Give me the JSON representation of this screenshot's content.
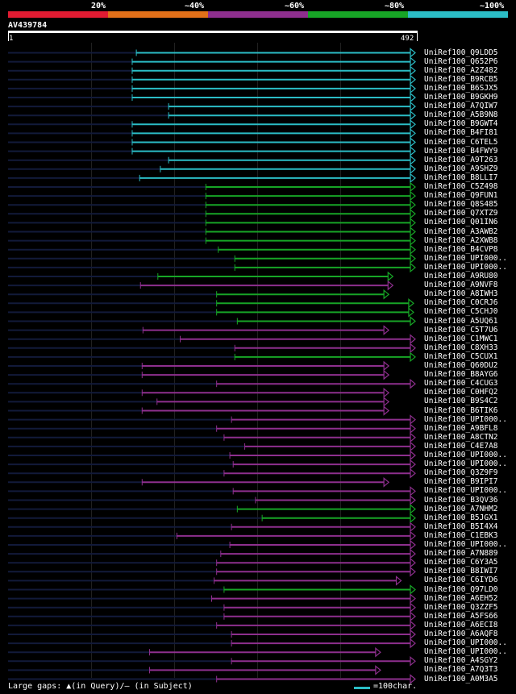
{
  "legend": {
    "labels": [
      "20%",
      "~40%",
      "~60%",
      "~80%",
      "~100%"
    ],
    "colors": [
      "#e01b32",
      "#e27019",
      "#8e2f8e",
      "#17a526",
      "#2bbdc6"
    ]
  },
  "query": {
    "name": "AV439784",
    "start": "1",
    "end": "492"
  },
  "footer": {
    "gaps_text": "Large gaps: ▲(in Query)/– (in Subject)",
    "scale_text": "=100char."
  },
  "chart_data": {
    "type": "alignment-overview",
    "query_length": 492,
    "hits": [
      {
        "name": "UniRef100_Q9LDD5",
        "start": 156,
        "end": 492,
        "identity_color": "#2bbdc6"
      },
      {
        "name": "UniRef100_Q652P6",
        "start": 151,
        "end": 492,
        "identity_color": "#2bbdc6"
      },
      {
        "name": "UniRef100_A2Z482",
        "start": 151,
        "end": 492,
        "identity_color": "#2bbdc6"
      },
      {
        "name": "UniRef100_B9RCB5",
        "start": 151,
        "end": 492,
        "identity_color": "#2bbdc6"
      },
      {
        "name": "UniRef100_B6SJX5",
        "start": 151,
        "end": 492,
        "identity_color": "#2bbdc6"
      },
      {
        "name": "UniRef100_B9GKH9",
        "start": 151,
        "end": 492,
        "identity_color": "#2bbdc6"
      },
      {
        "name": "UniRef100_A7QIW7",
        "start": 195,
        "end": 492,
        "identity_color": "#2bbdc6"
      },
      {
        "name": "UniRef100_A5B9N8",
        "start": 195,
        "end": 492,
        "identity_color": "#2bbdc6"
      },
      {
        "name": "UniRef100_B9GWT4",
        "start": 151,
        "end": 492,
        "identity_color": "#2bbdc6"
      },
      {
        "name": "UniRef100_B4FI81",
        "start": 151,
        "end": 492,
        "identity_color": "#2bbdc6"
      },
      {
        "name": "UniRef100_C6TEL5",
        "start": 151,
        "end": 492,
        "identity_color": "#2bbdc6"
      },
      {
        "name": "UniRef100_B4FWY9",
        "start": 151,
        "end": 492,
        "identity_color": "#2bbdc6"
      },
      {
        "name": "UniRef100_A9T263",
        "start": 195,
        "end": 492,
        "identity_color": "#2bbdc6"
      },
      {
        "name": "UniRef100_A9SHZ9",
        "start": 185,
        "end": 492,
        "identity_color": "#2bbdc6"
      },
      {
        "name": "UniRef100_B8LLI7",
        "start": 160,
        "end": 492,
        "identity_color": "#2bbdc6"
      },
      {
        "name": "UniRef100_C5Z498",
        "start": 240,
        "end": 492,
        "identity_color": "#17a526"
      },
      {
        "name": "UniRef100_Q9FUN1",
        "start": 240,
        "end": 492,
        "identity_color": "#17a526"
      },
      {
        "name": "UniRef100_Q8S485",
        "start": 240,
        "end": 492,
        "identity_color": "#17a526"
      },
      {
        "name": "UniRef100_Q7XTZ9",
        "start": 240,
        "end": 492,
        "identity_color": "#17a526"
      },
      {
        "name": "UniRef100_Q01IN6",
        "start": 240,
        "end": 492,
        "identity_color": "#17a526"
      },
      {
        "name": "UniRef100_A3AWB2",
        "start": 240,
        "end": 492,
        "identity_color": "#17a526"
      },
      {
        "name": "UniRef100_A2XWB8",
        "start": 240,
        "end": 492,
        "identity_color": "#17a526"
      },
      {
        "name": "UniRef100_B4CVP8",
        "start": 255,
        "end": 492,
        "identity_color": "#17a526"
      },
      {
        "name": "UniRef100_UPI000..",
        "start": 275,
        "end": 492,
        "identity_color": "#17a526"
      },
      {
        "name": "UniRef100_UPI000..",
        "start": 275,
        "end": 492,
        "identity_color": "#17a526"
      },
      {
        "name": "UniRef100_A9RU80",
        "start": 182,
        "end": 465,
        "identity_color": "#17a526"
      },
      {
        "name": "UniRef100_A9NVF8",
        "start": 161,
        "end": 465,
        "identity_color": "#8e2f8e"
      },
      {
        "name": "UniRef100_A8IWH3",
        "start": 253,
        "end": 460,
        "identity_color": "#17a526"
      },
      {
        "name": "UniRef100_C0CRJ6",
        "start": 253,
        "end": 490,
        "identity_color": "#17a526"
      },
      {
        "name": "UniRef100_C5CHJ0",
        "start": 253,
        "end": 490,
        "identity_color": "#17a526"
      },
      {
        "name": "UniRef100_A5UQ61",
        "start": 278,
        "end": 492,
        "identity_color": "#17a526"
      },
      {
        "name": "UniRef100_C5T7U6",
        "start": 164,
        "end": 460,
        "identity_color": "#8e2f8e"
      },
      {
        "name": "UniRef100_C1MWC1",
        "start": 209,
        "end": 492,
        "identity_color": "#8e2f8e"
      },
      {
        "name": "UniRef100_C8XH33",
        "start": 275,
        "end": 492,
        "identity_color": "#8e2f8e"
      },
      {
        "name": "UniRef100_C5CUX1",
        "start": 275,
        "end": 492,
        "identity_color": "#17a526"
      },
      {
        "name": "UniRef100_Q60DU2",
        "start": 163,
        "end": 460,
        "identity_color": "#8e2f8e"
      },
      {
        "name": "UniRef100_B8AYG6",
        "start": 163,
        "end": 460,
        "identity_color": "#8e2f8e"
      },
      {
        "name": "UniRef100_C4CUG3",
        "start": 253,
        "end": 492,
        "identity_color": "#8e2f8e"
      },
      {
        "name": "UniRef100_C0HFQ2",
        "start": 163,
        "end": 460,
        "identity_color": "#8e2f8e"
      },
      {
        "name": "UniRef100_B9S4C2",
        "start": 181,
        "end": 460,
        "identity_color": "#8e2f8e"
      },
      {
        "name": "UniRef100_B6TIK6",
        "start": 163,
        "end": 460,
        "identity_color": "#8e2f8e"
      },
      {
        "name": "UniRef100_UPI000..",
        "start": 271,
        "end": 492,
        "identity_color": "#8e2f8e"
      },
      {
        "name": "UniRef100_A9BFL8",
        "start": 253,
        "end": 492,
        "identity_color": "#8e2f8e"
      },
      {
        "name": "UniRef100_A8CTN2",
        "start": 262,
        "end": 492,
        "identity_color": "#8e2f8e"
      },
      {
        "name": "UniRef100_C4E7A8",
        "start": 287,
        "end": 492,
        "identity_color": "#8e2f8e"
      },
      {
        "name": "UniRef100_UPI000..",
        "start": 269,
        "end": 492,
        "identity_color": "#8e2f8e"
      },
      {
        "name": "UniRef100_UPI000..",
        "start": 273,
        "end": 492,
        "identity_color": "#8e2f8e"
      },
      {
        "name": "UniRef100_Q3Z9F9",
        "start": 262,
        "end": 492,
        "identity_color": "#8e2f8e"
      },
      {
        "name": "UniRef100_B9IPI7",
        "start": 163,
        "end": 460,
        "identity_color": "#8e2f8e"
      },
      {
        "name": "UniRef100_UPI000..",
        "start": 273,
        "end": 492,
        "identity_color": "#8e2f8e"
      },
      {
        "name": "UniRef100_B3QV36",
        "start": 300,
        "end": 492,
        "identity_color": "#8e2f8e"
      },
      {
        "name": "UniRef100_A7NHM2",
        "start": 278,
        "end": 492,
        "identity_color": "#17a526"
      },
      {
        "name": "UniRef100_B5JGX1",
        "start": 308,
        "end": 492,
        "identity_color": "#17a526"
      },
      {
        "name": "UniRef100_B5I4X4",
        "start": 271,
        "end": 492,
        "identity_color": "#8e2f8e"
      },
      {
        "name": "UniRef100_C1EBK3",
        "start": 205,
        "end": 492,
        "identity_color": "#8e2f8e"
      },
      {
        "name": "UniRef100_UPI000..",
        "start": 269,
        "end": 492,
        "identity_color": "#8e2f8e"
      },
      {
        "name": "UniRef100_A7N889",
        "start": 258,
        "end": 492,
        "identity_color": "#8e2f8e"
      },
      {
        "name": "UniRef100_C6Y3A5",
        "start": 253,
        "end": 492,
        "identity_color": "#8e2f8e"
      },
      {
        "name": "UniRef100_B8IWI7",
        "start": 253,
        "end": 492,
        "identity_color": "#8e2f8e"
      },
      {
        "name": "UniRef100_C6IYD6",
        "start": 250,
        "end": 475,
        "identity_color": "#8e2f8e"
      },
      {
        "name": "UniRef100_Q97LD0",
        "start": 262,
        "end": 492,
        "identity_color": "#17a526"
      },
      {
        "name": "UniRef100_A6EH52",
        "start": 247,
        "end": 492,
        "identity_color": "#8e2f8e"
      },
      {
        "name": "UniRef100_Q3ZZF5",
        "start": 262,
        "end": 492,
        "identity_color": "#8e2f8e"
      },
      {
        "name": "UniRef100_A5FS66",
        "start": 262,
        "end": 492,
        "identity_color": "#8e2f8e"
      },
      {
        "name": "UniRef100_A6ECI8",
        "start": 253,
        "end": 492,
        "identity_color": "#8e2f8e"
      },
      {
        "name": "UniRef100_A6AQF8",
        "start": 271,
        "end": 492,
        "identity_color": "#8e2f8e"
      },
      {
        "name": "UniRef100_UPI000..",
        "start": 271,
        "end": 492,
        "identity_color": "#8e2f8e"
      },
      {
        "name": "UniRef100_UPI000..",
        "start": 172,
        "end": 450,
        "identity_color": "#8e2f8e"
      },
      {
        "name": "UniRef100_A4SGY2",
        "start": 271,
        "end": 492,
        "identity_color": "#8e2f8e"
      },
      {
        "name": "UniRef100_A7Q3T3",
        "start": 172,
        "end": 450,
        "identity_color": "#8e2f8e"
      },
      {
        "name": "UniRef100_A0M3A5",
        "start": 253,
        "end": 492,
        "identity_color": "#8e2f8e"
      }
    ]
  }
}
